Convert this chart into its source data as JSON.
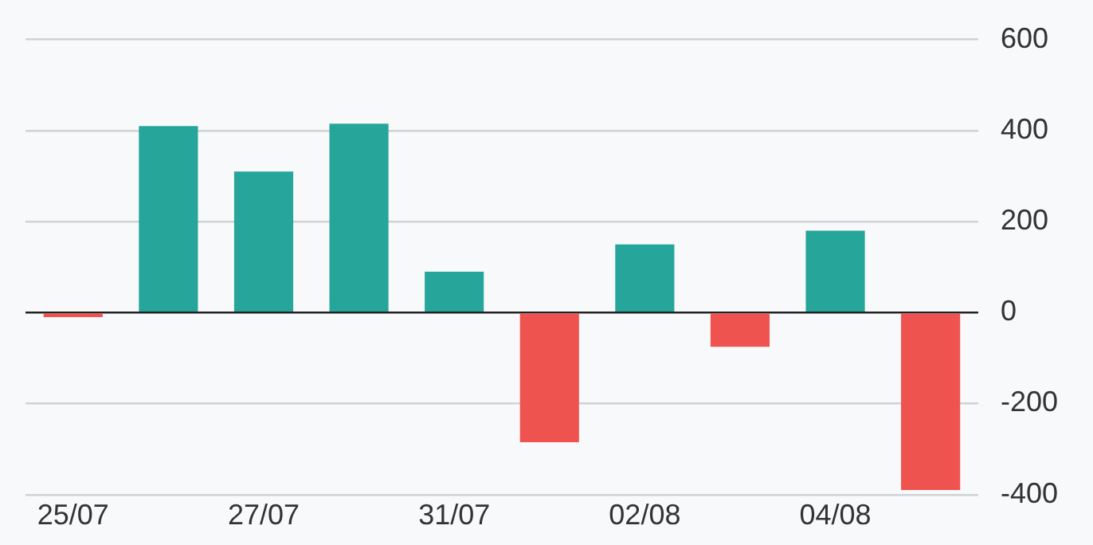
{
  "chart_data": {
    "type": "bar",
    "categories": [
      "25/07",
      null,
      "27/07",
      null,
      "31/07",
      null,
      "02/08",
      null,
      "04/08",
      null
    ],
    "values": [
      -10,
      410,
      310,
      415,
      90,
      -285,
      150,
      -75,
      180,
      -390
    ],
    "colors": [
      "#ef5350",
      "#26a69a",
      "#26a69a",
      "#26a69a",
      "#26a69a",
      "#ef5350",
      "#26a69a",
      "#ef5350",
      "#26a69a",
      "#ef5350"
    ],
    "ylim": [
      -400,
      600
    ],
    "yticks": [
      -400,
      -200,
      0,
      200,
      400,
      600
    ],
    "grid": "y",
    "legend": false
  }
}
